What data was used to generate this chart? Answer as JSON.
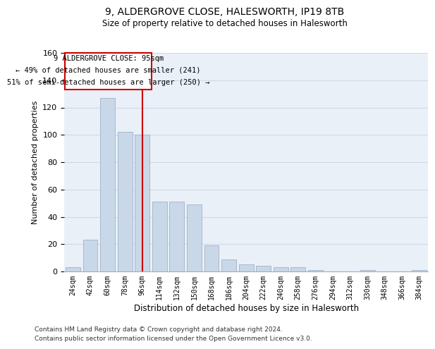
{
  "title_line1": "9, ALDERGROVE CLOSE, HALESWORTH, IP19 8TB",
  "title_line2": "Size of property relative to detached houses in Halesworth",
  "xlabel": "Distribution of detached houses by size in Halesworth",
  "ylabel": "Number of detached properties",
  "categories": [
    "24sqm",
    "42sqm",
    "60sqm",
    "78sqm",
    "96sqm",
    "114sqm",
    "132sqm",
    "150sqm",
    "168sqm",
    "186sqm",
    "204sqm",
    "222sqm",
    "240sqm",
    "258sqm",
    "276sqm",
    "294sqm",
    "312sqm",
    "330sqm",
    "348sqm",
    "366sqm",
    "384sqm"
  ],
  "values": [
    3,
    23,
    127,
    102,
    100,
    51,
    51,
    49,
    19,
    9,
    5,
    4,
    3,
    3,
    1,
    0,
    0,
    1,
    0,
    0,
    1
  ],
  "bar_color": "#c8d8e8",
  "bar_edge_color": "#a8b8cc",
  "property_line_x": 4,
  "property_line_label": "9 ALDERGROVE CLOSE: 95sqm",
  "annotation_line2": "← 49% of detached houses are smaller (241)",
  "annotation_line3": "51% of semi-detached houses are larger (250) →",
  "annotation_box_color": "#ffffff",
  "annotation_box_edge_color": "#cc0000",
  "annotation_text_color": "#000000",
  "property_line_color": "#cc0000",
  "ylim": [
    0,
    160
  ],
  "yticks": [
    0,
    20,
    40,
    60,
    80,
    100,
    120,
    140,
    160
  ],
  "grid_color": "#d0d8e8",
  "background_color": "#eaf0f8",
  "footer_line1": "Contains HM Land Registry data © Crown copyright and database right 2024.",
  "footer_line2": "Contains public sector information licensed under the Open Government Licence v3.0."
}
